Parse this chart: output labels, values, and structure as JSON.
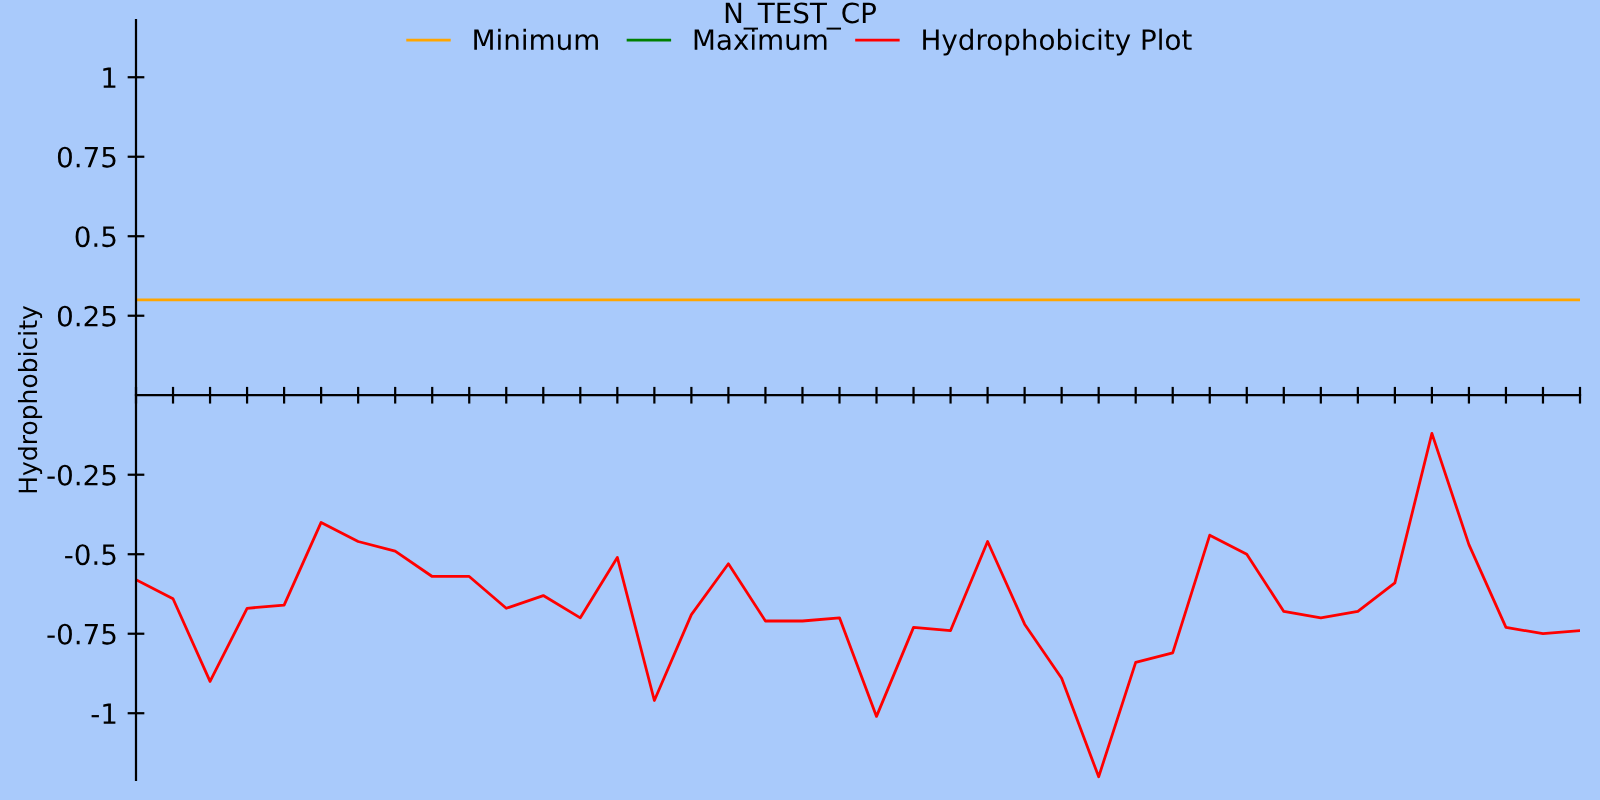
{
  "chart_data": {
    "type": "line",
    "title": "N_TEST_CP",
    "ylabel": "Hydrophobicity",
    "categories": [
      null,
      null,
      null,
      null,
      null,
      null,
      null,
      null,
      null,
      null,
      null,
      null,
      null,
      null,
      null,
      null,
      null,
      null,
      null,
      null,
      null,
      null,
      null,
      null,
      null,
      null,
      null,
      null,
      null,
      null,
      null,
      null,
      null,
      null,
      null,
      null,
      null,
      null,
      null,
      null
    ],
    "series": [
      {
        "name": "Minimum",
        "color": "#ffa500",
        "values": [
          0.3,
          0.3,
          0.3,
          0.3,
          0.3,
          0.3,
          0.3,
          0.3,
          0.3,
          0.3,
          0.3,
          0.3,
          0.3,
          0.3,
          0.3,
          0.3,
          0.3,
          0.3,
          0.3,
          0.3,
          0.3,
          0.3,
          0.3,
          0.3,
          0.3,
          0.3,
          0.3,
          0.3,
          0.3,
          0.3,
          0.3,
          0.3,
          0.3,
          0.3,
          0.3,
          0.3,
          0.3,
          0.3,
          0.3,
          0.3
        ]
      },
      {
        "name": "Maximum",
        "color": "#008000",
        "values": [
          null,
          null,
          null,
          null,
          null,
          null,
          null,
          null,
          null,
          null,
          null,
          null,
          null,
          null,
          null,
          null,
          null,
          null,
          null,
          null,
          null,
          null,
          null,
          null,
          null,
          null,
          null,
          null,
          null,
          null,
          null,
          null,
          null,
          null,
          null,
          null,
          null,
          null,
          null,
          null
        ]
      },
      {
        "name": "Hydrophobicity Plot",
        "color": "#ff0000",
        "values": [
          -0.58,
          -0.64,
          -0.9,
          -0.67,
          -0.66,
          -0.4,
          -0.46,
          -0.49,
          -0.57,
          -0.57,
          -0.67,
          -0.63,
          -0.7,
          -0.51,
          -0.96,
          -0.69,
          -0.53,
          -0.71,
          -0.71,
          -0.7,
          -1.01,
          -0.73,
          -0.74,
          -0.46,
          -0.72,
          -0.89,
          -1.2,
          -0.84,
          -0.81,
          -0.44,
          -0.5,
          -0.68,
          -0.7,
          -0.68,
          -0.59,
          -0.12,
          -0.47,
          -0.73,
          -0.75,
          -0.74
        ]
      }
    ],
    "ylim": [
      -1.21,
      1.18
    ],
    "yticks": [
      1,
      0.75,
      0.5,
      0.25,
      -0.25,
      -0.5,
      -0.75,
      -1
    ],
    "tick_labels": "y",
    "grid": false,
    "legend": "top",
    "marker": "none",
    "line_style": "solid"
  }
}
